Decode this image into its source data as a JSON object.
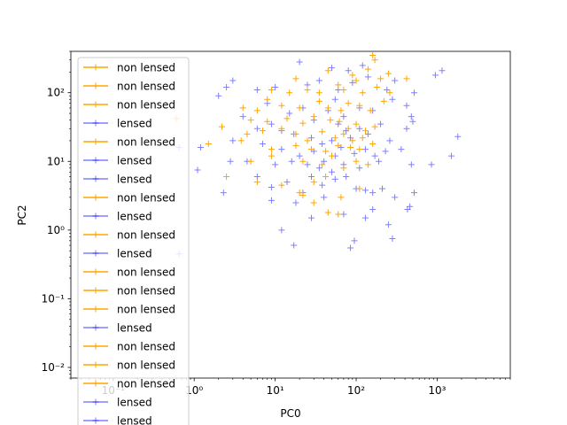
{
  "chart_data": {
    "type": "scatter",
    "xlabel": "PC0",
    "ylabel": "PC2",
    "xscale": "log",
    "yscale": "log",
    "xlim": [
      0.03,
      8000
    ],
    "ylim": [
      0.007,
      400
    ],
    "grid": false,
    "legend_placement": "upper-left",
    "x_tick_labels": [
      {
        "value": 0.1,
        "label": "10⁻¹"
      },
      {
        "value": 1,
        "label": "10⁰"
      },
      {
        "value": 10,
        "label": "10¹"
      },
      {
        "value": 100,
        "label": "10²"
      },
      {
        "value": 1000,
        "label": "10³"
      }
    ],
    "y_tick_labels": [
      {
        "value": 0.01,
        "label": "10⁻²"
      },
      {
        "value": 0.1,
        "label": "10⁻¹"
      },
      {
        "value": 1,
        "label": "10⁰"
      },
      {
        "value": 10,
        "label": "10¹"
      },
      {
        "value": 100,
        "label": "10²"
      }
    ],
    "series_styles": {
      "lensed": {
        "color": "#0000ff",
        "alpha": 0.5
      },
      "non lensed": {
        "color": "#ffa500",
        "alpha": 1.0
      }
    },
    "legend": [
      {
        "name": "non lensed",
        "color": "#ffa500"
      },
      {
        "name": "non lensed",
        "color": "#ffa500"
      },
      {
        "name": "non lensed",
        "color": "#ffa500"
      },
      {
        "name": "lensed",
        "color": "#0000ff"
      },
      {
        "name": "non lensed",
        "color": "#ffa500"
      },
      {
        "name": "lensed",
        "color": "#0000ff"
      },
      {
        "name": "lensed",
        "color": "#0000ff"
      },
      {
        "name": "non lensed",
        "color": "#ffa500"
      },
      {
        "name": "lensed",
        "color": "#0000ff"
      },
      {
        "name": "non lensed",
        "color": "#ffa500"
      },
      {
        "name": "lensed",
        "color": "#0000ff"
      },
      {
        "name": "non lensed",
        "color": "#ffa500"
      },
      {
        "name": "non lensed",
        "color": "#ffa500"
      },
      {
        "name": "non lensed",
        "color": "#ffa500"
      },
      {
        "name": "lensed",
        "color": "#0000ff"
      },
      {
        "name": "non lensed",
        "color": "#ffa500"
      },
      {
        "name": "non lensed",
        "color": "#ffa500"
      },
      {
        "name": "non lensed",
        "color": "#ffa500"
      },
      {
        "name": "lensed",
        "color": "#0000ff"
      },
      {
        "name": "lensed",
        "color": "#0000ff"
      }
    ],
    "series": [
      {
        "name": "lensed",
        "points": [
          [
            20,
            280
          ],
          [
            50,
            230
          ],
          [
            80,
            210
          ],
          [
            120,
            250
          ],
          [
            1150,
            210
          ],
          [
            950,
            180
          ],
          [
            2.5,
            120
          ],
          [
            3,
            150
          ],
          [
            6,
            110
          ],
          [
            10,
            120
          ],
          [
            25,
            130
          ],
          [
            35,
            150
          ],
          [
            60,
            110
          ],
          [
            90,
            140
          ],
          [
            140,
            170
          ],
          [
            240,
            110
          ],
          [
            300,
            150
          ],
          [
            2,
            90
          ],
          [
            8,
            70
          ],
          [
            15,
            50
          ],
          [
            22,
            60
          ],
          [
            30,
            40
          ],
          [
            45,
            55
          ],
          [
            55,
            80
          ],
          [
            70,
            45
          ],
          [
            110,
            60
          ],
          [
            160,
            55
          ],
          [
            280,
            80
          ],
          [
            420,
            65
          ],
          [
            520,
            100
          ],
          [
            480,
            45
          ],
          [
            4,
            45
          ],
          [
            6,
            30
          ],
          [
            9,
            35
          ],
          [
            12,
            28
          ],
          [
            17,
            25
          ],
          [
            28,
            22
          ],
          [
            38,
            18
          ],
          [
            50,
            20
          ],
          [
            60,
            35
          ],
          [
            75,
            28
          ],
          [
            85,
            22
          ],
          [
            110,
            30
          ],
          [
            140,
            25
          ],
          [
            200,
            35
          ],
          [
            260,
            20
          ],
          [
            420,
            30
          ],
          [
            500,
            38
          ],
          [
            1800,
            23
          ],
          [
            3,
            20
          ],
          [
            7,
            18
          ],
          [
            12,
            15
          ],
          [
            20,
            12
          ],
          [
            30,
            14
          ],
          [
            40,
            10
          ],
          [
            55,
            12
          ],
          [
            65,
            16
          ],
          [
            95,
            13
          ],
          [
            130,
            15
          ],
          [
            170,
            12
          ],
          [
            230,
            14
          ],
          [
            360,
            15
          ],
          [
            0.65,
            16
          ],
          [
            1.2,
            16
          ],
          [
            4.5,
            10
          ],
          [
            10,
            9
          ],
          [
            16,
            10
          ],
          [
            25,
            9
          ],
          [
            35,
            8
          ],
          [
            50,
            7
          ],
          [
            70,
            9
          ],
          [
            110,
            8
          ],
          [
            190,
            10
          ],
          [
            480,
            9
          ],
          [
            850,
            9
          ],
          [
            1500,
            12
          ],
          [
            1.1,
            7.5
          ],
          [
            2.8,
            10
          ],
          [
            6,
            6
          ],
          [
            9,
            4.2
          ],
          [
            14,
            5
          ],
          [
            22,
            3.5
          ],
          [
            28,
            6
          ],
          [
            38,
            4.5
          ],
          [
            55,
            5.5
          ],
          [
            75,
            6
          ],
          [
            100,
            4
          ],
          [
            130,
            3.8
          ],
          [
            160,
            3.5
          ],
          [
            210,
            4
          ],
          [
            300,
            3
          ],
          [
            430,
            2
          ],
          [
            520,
            3.5
          ],
          [
            2.3,
            3.5
          ],
          [
            9,
            2.7
          ],
          [
            18,
            2.5
          ],
          [
            40,
            3
          ],
          [
            28,
            1.5
          ],
          [
            70,
            1.7
          ],
          [
            130,
            1.5
          ],
          [
            160,
            2
          ],
          [
            250,
            1.2
          ],
          [
            460,
            2.2
          ],
          [
            12,
            1
          ],
          [
            17,
            0.6
          ],
          [
            85,
            0.55
          ],
          [
            95,
            0.7
          ],
          [
            280,
            0.75
          ],
          [
            0.65,
            0.45
          ]
        ]
      },
      {
        "name": "non lensed",
        "points": [
          [
            160,
            350
          ],
          [
            170,
            300
          ],
          [
            45,
            210
          ],
          [
            90,
            180
          ],
          [
            140,
            220
          ],
          [
            250,
            190
          ],
          [
            420,
            160
          ],
          [
            18,
            160
          ],
          [
            60,
            130
          ],
          [
            100,
            150
          ],
          [
            200,
            160
          ],
          [
            9,
            110
          ],
          [
            15,
            100
          ],
          [
            25,
            110
          ],
          [
            35,
            100
          ],
          [
            70,
            110
          ],
          [
            120,
            100
          ],
          [
            180,
            120
          ],
          [
            260,
            100
          ],
          [
            4,
            60
          ],
          [
            6,
            55
          ],
          [
            8,
            80
          ],
          [
            12,
            65
          ],
          [
            20,
            60
          ],
          [
            35,
            75
          ],
          [
            45,
            60
          ],
          [
            65,
            55
          ],
          [
            80,
            70
          ],
          [
            110,
            65
          ],
          [
            150,
            55
          ],
          [
            220,
            75
          ],
          [
            5,
            40
          ],
          [
            8,
            38
          ],
          [
            14,
            42
          ],
          [
            22,
            36
          ],
          [
            30,
            45
          ],
          [
            48,
            40
          ],
          [
            62,
            38
          ],
          [
            80,
            30
          ],
          [
            100,
            35
          ],
          [
            130,
            28
          ],
          [
            170,
            32
          ],
          [
            2.2,
            32
          ],
          [
            4.5,
            25
          ],
          [
            7,
            28
          ],
          [
            12,
            30
          ],
          [
            18,
            25
          ],
          [
            25,
            20
          ],
          [
            38,
            27
          ],
          [
            55,
            22
          ],
          [
            70,
            25
          ],
          [
            90,
            20
          ],
          [
            120,
            22
          ],
          [
            160,
            18
          ],
          [
            1.5,
            18
          ],
          [
            3.8,
            20
          ],
          [
            9,
            15
          ],
          [
            18,
            17
          ],
          [
            28,
            15
          ],
          [
            42,
            14
          ],
          [
            60,
            17
          ],
          [
            85,
            16
          ],
          [
            110,
            15
          ],
          [
            5,
            10
          ],
          [
            9,
            12
          ],
          [
            22,
            10
          ],
          [
            38,
            9
          ],
          [
            50,
            12
          ],
          [
            70,
            8
          ],
          [
            100,
            10
          ],
          [
            140,
            9
          ],
          [
            0.6,
            42
          ],
          [
            2.5,
            6
          ],
          [
            6,
            5
          ],
          [
            12,
            4.5
          ],
          [
            20,
            3.5
          ],
          [
            30,
            5
          ],
          [
            42,
            6
          ],
          [
            65,
            3
          ],
          [
            110,
            4
          ],
          [
            30,
            2.5
          ],
          [
            45,
            1.8
          ],
          [
            60,
            1.7
          ],
          [
            22,
            3.2
          ]
        ]
      }
    ]
  }
}
